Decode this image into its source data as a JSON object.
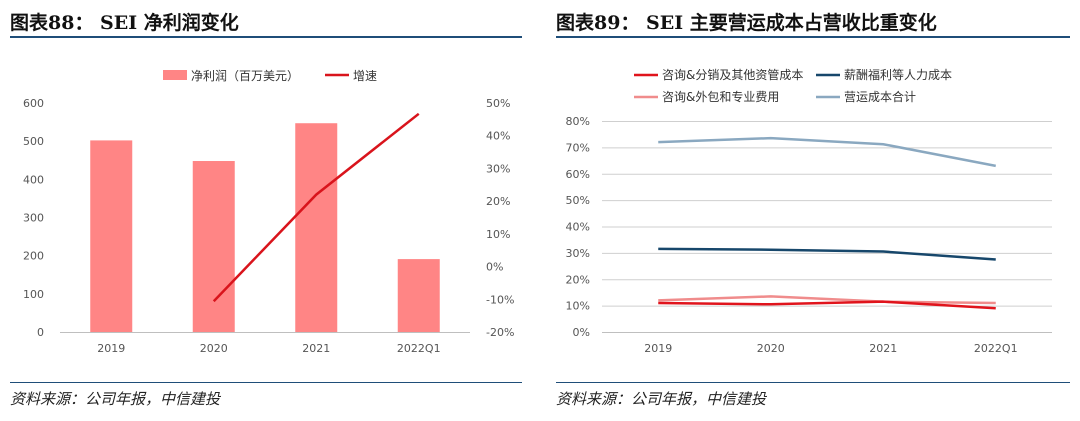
{
  "left": {
    "title": "图表88： SEI 净利润变化",
    "source": "资料来源：公司年报，中信建投",
    "colors": {
      "bar": "#ff8585",
      "line": "#d9141c"
    },
    "chart_data": {
      "type": "bar+line",
      "title": "SEI 净利润变化",
      "categories": [
        "2019",
        "2020",
        "2021",
        "2022Q1"
      ],
      "series": [
        {
          "name": "净利润（百万美元）",
          "type": "bar",
          "axis": "left",
          "values": [
            502,
            448,
            547,
            191
          ]
        },
        {
          "name": "增速",
          "type": "line",
          "axis": "right",
          "values": [
            null,
            -10.6,
            22.0,
            46.7
          ]
        }
      ],
      "y_left": {
        "min": 0,
        "max": 600,
        "step": 100,
        "ticks": [
          "0",
          "100",
          "200",
          "300",
          "400",
          "500",
          "600"
        ]
      },
      "y_right": {
        "min": -20,
        "max": 50,
        "step": 10,
        "ticks": [
          "-20%",
          "-10%",
          "0%",
          "10%",
          "20%",
          "30%",
          "40%",
          "50%"
        ]
      },
      "grid": false,
      "legend_position": "top"
    }
  },
  "right": {
    "title": "图表89： SEI 主要营运成本占营收比重变化",
    "source": "资料来源：公司年报，中信建投",
    "colors": {
      "consult": "#e0141c",
      "salary": "#17476b",
      "outsourcing": "#f08c8c",
      "total": "#8aa8c0",
      "grid": "#cfcfcf"
    },
    "chart_data": {
      "type": "line",
      "title": "SEI 主要营运成本占营收比重变化",
      "categories": [
        "2019",
        "2020",
        "2021",
        "2022Q1"
      ],
      "series": [
        {
          "name": "咨询&分销及其他资管成本",
          "values": [
            11.0,
            10.5,
            11.5,
            9.0
          ]
        },
        {
          "name": "薪酬福利等人力成本",
          "values": [
            31.5,
            31.2,
            30.5,
            27.5
          ]
        },
        {
          "name": "咨询&外包和专业费用",
          "values": [
            12.0,
            13.5,
            11.5,
            11.0
          ]
        },
        {
          "name": "营运成本合计",
          "values": [
            72.0,
            73.5,
            71.2,
            63.0
          ]
        }
      ],
      "y": {
        "min": 0,
        "max": 80,
        "step": 10,
        "ticks": [
          "0%",
          "10%",
          "20%",
          "30%",
          "40%",
          "50%",
          "60%",
          "70%",
          "80%"
        ]
      },
      "grid": true,
      "legend_position": "top"
    }
  }
}
